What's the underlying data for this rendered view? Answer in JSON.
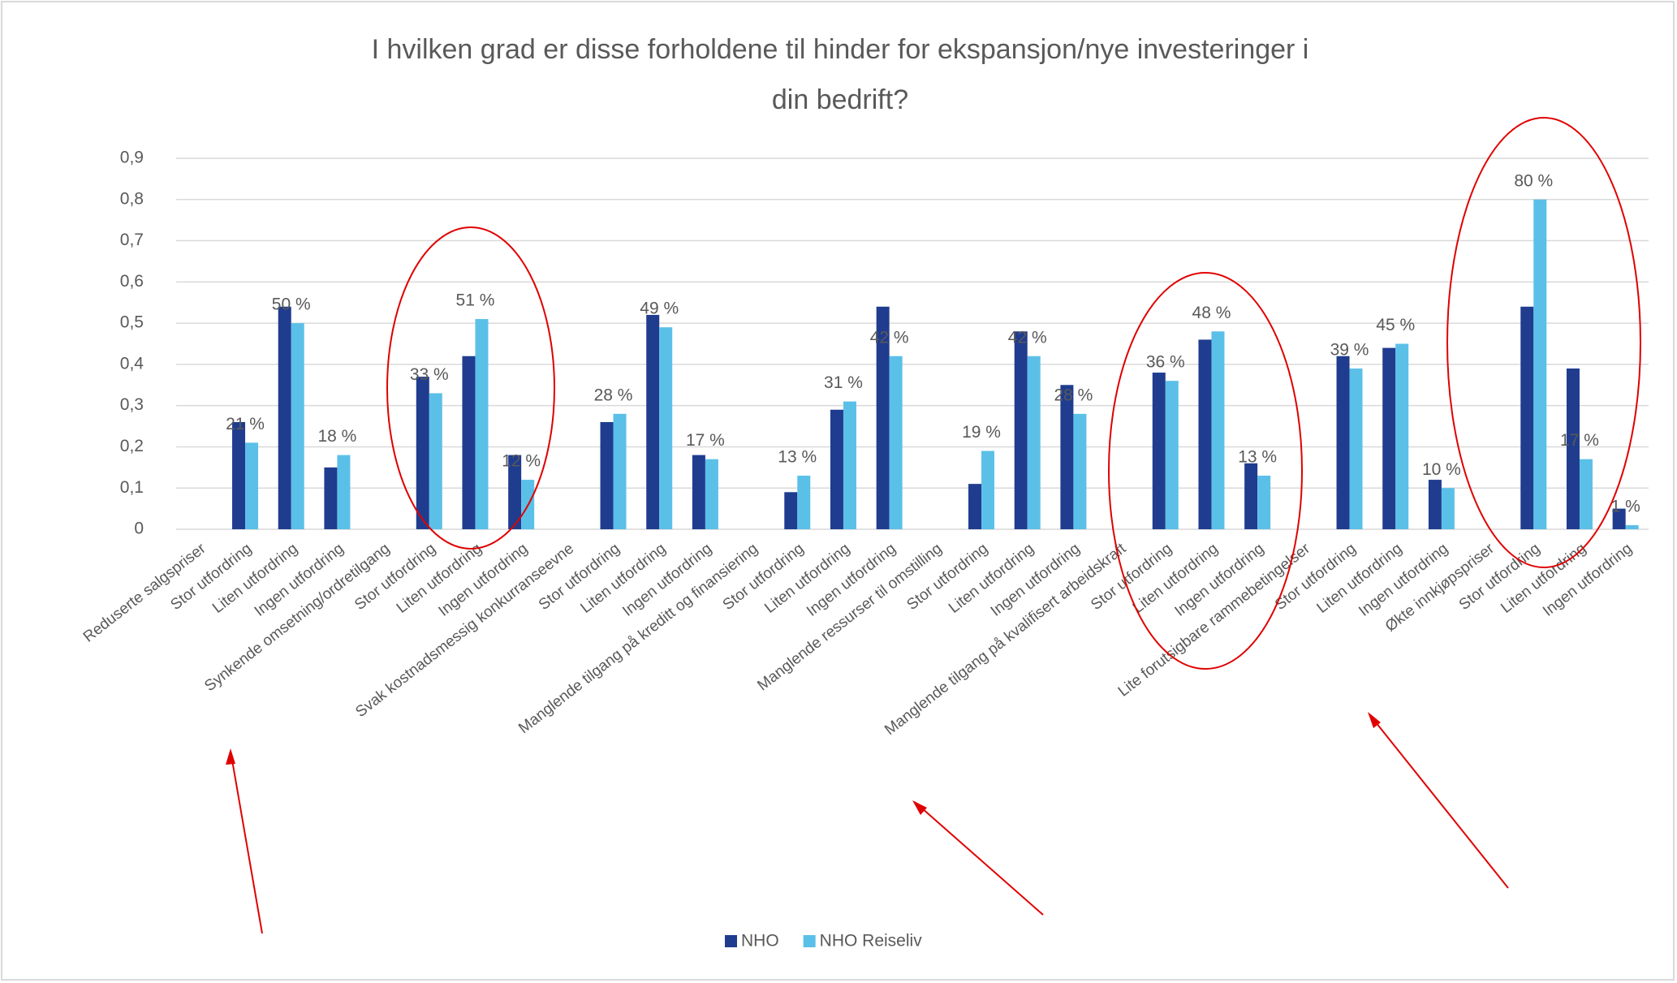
{
  "chart_data": {
    "type": "bar",
    "title": "I hvilken grad er disse forholdene til hinder for ekspansjon/nye investeringer i",
    "title_line2": "din bedrift?",
    "categories": [
      "Reduserte salgspriser",
      "Stor utfordring",
      "Liten utfordring",
      "Ingen utfordring",
      "Synkende omsetning/ordretilgang",
      "Stor utfordring",
      "Liten utfordring",
      "Ingen utfordring",
      "Svak kostnadsmessig konkurranseevne",
      "Stor utfordring",
      "Liten utfordring",
      "Ingen utfordring",
      "Manglende tilgang på kreditt og finansiering",
      "Stor utfordring",
      "Liten utfordring",
      "Ingen utfordring",
      "Manglende ressurser til omstilling",
      "Stor utfordring",
      "Liten utfordring",
      "Ingen utfordring",
      "Manglende tilgang på kvalifisert arbeidskraft",
      "Stor utfordring",
      "Liten utfordring",
      "Ingen utfordring",
      "Lite forutsigbare rammebetingelser",
      "Stor utfordring",
      "Liten utfordring",
      "Ingen utfordring",
      "Økte innkjøpspriser",
      "Stor utfordring",
      "Liten utfordring",
      "Ingen utfordring"
    ],
    "series": [
      {
        "name": "NHO",
        "color": "#1f3c8f",
        "values": [
          null,
          0.26,
          0.54,
          0.15,
          null,
          0.37,
          0.42,
          0.18,
          null,
          0.26,
          0.52,
          0.18,
          null,
          0.09,
          0.29,
          0.54,
          null,
          0.11,
          0.48,
          0.35,
          null,
          0.38,
          0.46,
          0.16,
          null,
          0.42,
          0.44,
          0.12,
          null,
          0.54,
          0.39,
          0.05
        ]
      },
      {
        "name": "NHO Reiseliv",
        "color": "#5bc0e8",
        "values": [
          null,
          0.21,
          0.5,
          0.18,
          null,
          0.33,
          0.51,
          0.12,
          null,
          0.28,
          0.49,
          0.17,
          null,
          0.13,
          0.31,
          0.42,
          null,
          0.19,
          0.42,
          0.28,
          null,
          0.36,
          0.48,
          0.13,
          null,
          0.39,
          0.45,
          0.1,
          null,
          0.8,
          0.17,
          0.01
        ],
        "value_labels": [
          null,
          "21 %",
          "50 %",
          "18 %",
          null,
          "33 %",
          "51 %",
          "12 %",
          null,
          "28 %",
          "49 %",
          "17 %",
          null,
          "13 %",
          "31 %",
          "42 %",
          null,
          "19 %",
          "42 %",
          "28 %",
          null,
          "36 %",
          "48 %",
          "13 %",
          null,
          "39 %",
          "45 %",
          "10 %",
          null,
          "80 %",
          "17 %",
          "1 %"
        ]
      }
    ],
    "ylim": [
      0,
      0.9
    ],
    "yticks": [
      0,
      {
        "value": 0.1,
        "label": "0,1"
      },
      {
        "value": 0.2,
        "label": "0,2"
      },
      {
        "value": 0.3,
        "label": "0,3"
      },
      {
        "value": 0.4,
        "label": "0,4"
      },
      {
        "value": 0.5,
        "label": "0,5"
      },
      {
        "value": 0.6,
        "label": "0,6"
      },
      {
        "value": 0.7,
        "label": "0,7"
      },
      {
        "value": 0.8,
        "label": "0,8"
      },
      {
        "value": 0.9,
        "label": "0,9"
      }
    ],
    "grid": true,
    "legend": "bottom"
  }
}
